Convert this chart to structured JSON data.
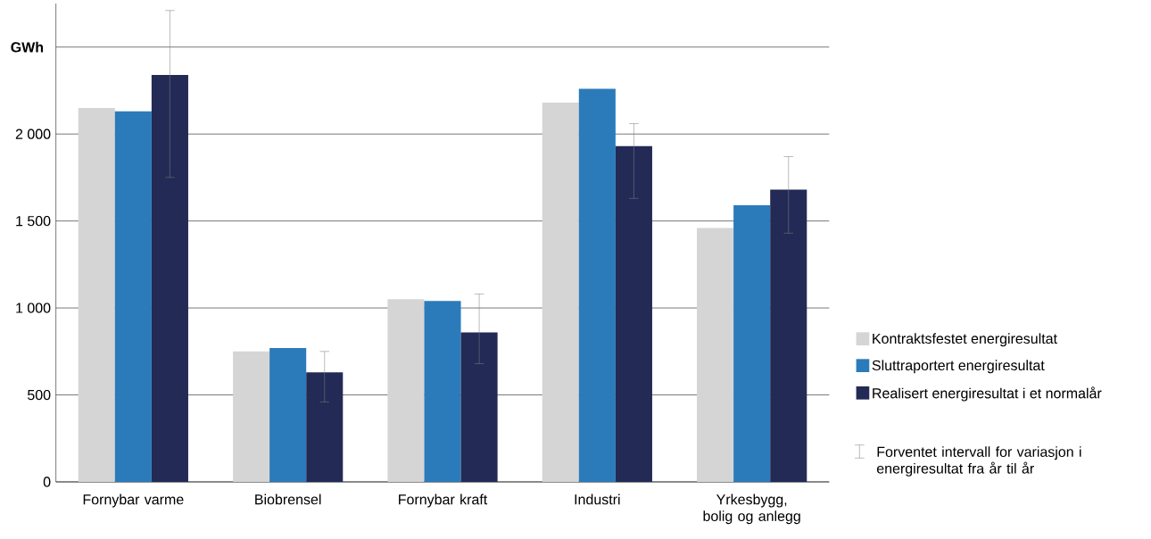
{
  "chart_data": {
    "type": "bar",
    "ylabel": "GWh",
    "categories": [
      "Fornybar varme",
      "Biobrensel",
      "Fornybar kraft",
      "Industri",
      "Yrkesbygg, bolig og anlegg"
    ],
    "series": [
      {
        "name": "Kontraktsfestet energiresultat",
        "color": "#d5d5d5",
        "values": [
          2150,
          750,
          1050,
          2180,
          1460
        ]
      },
      {
        "name": "Sluttraportert energiresultat",
        "color": "#2b7bbb",
        "values": [
          2130,
          770,
          1040,
          2260,
          1590
        ]
      },
      {
        "name": "Realisert energiresultat i et normalår",
        "color": "#222a55",
        "values": [
          2340,
          630,
          860,
          1930,
          1680
        ],
        "errors": [
          [
            1750,
            2710
          ],
          [
            460,
            750
          ],
          [
            680,
            1080
          ],
          [
            1630,
            2060
          ],
          [
            1430,
            1870
          ]
        ]
      }
    ],
    "annotations": [
      "Forventet intervall for variasjon i energiresultat fra år til år"
    ],
    "ylim": [
      0,
      2750
    ],
    "yticks": [
      0,
      {
        "value": 500,
        "label": "500"
      },
      {
        "value": 1000,
        "label": "1 000"
      },
      {
        "value": 1500,
        "label": "1 500"
      },
      {
        "value": 2000,
        "label": "2 000"
      },
      {
        "value": 2500,
        "label": null
      }
    ],
    "grid": "y",
    "legend": "right"
  }
}
